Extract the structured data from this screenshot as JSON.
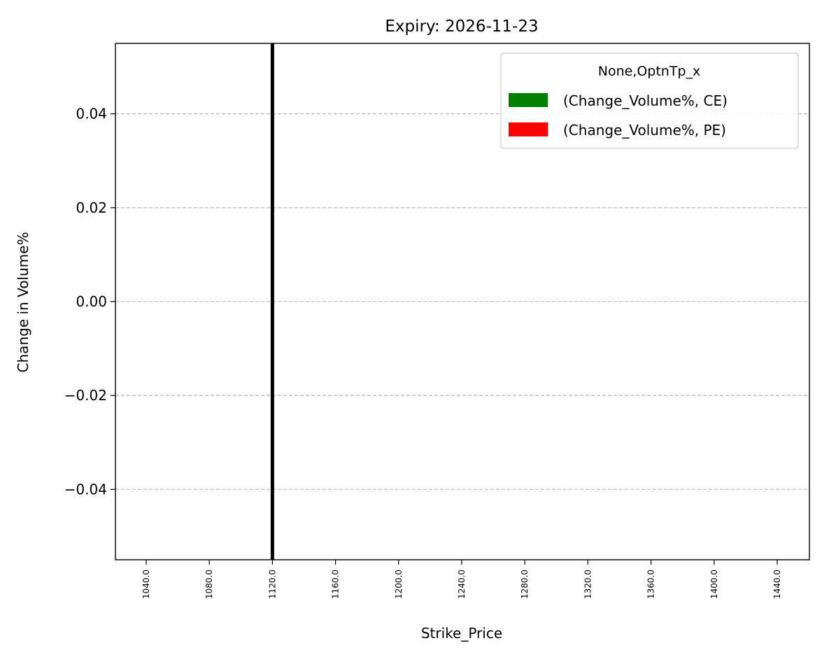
{
  "chart_data": {
    "type": "bar",
    "title": "Expiry: 2026-11-23",
    "xlabel": "Strike_Price",
    "ylabel": "Change in Volume%",
    "categories": [
      "1040.0",
      "1080.0",
      "1120.0",
      "1160.0",
      "1200.0",
      "1240.0",
      "1280.0",
      "1320.0",
      "1360.0",
      "1400.0",
      "1440.0"
    ],
    "series": [
      {
        "name": "(Change_Volume%, CE)",
        "color": "#008000",
        "values": [
          0,
          0,
          0,
          0,
          0,
          0,
          0,
          0,
          0,
          0,
          0
        ]
      },
      {
        "name": "(Change_Volume%, PE)",
        "color": "#ff0000",
        "values": [
          0,
          0,
          0,
          0,
          0,
          0,
          0,
          0,
          0,
          0,
          0
        ]
      }
    ],
    "legend_title": "None,OptnTp_x",
    "legend_position": "upper right",
    "ylim": [
      -0.055,
      0.055
    ],
    "yticks": [
      -0.04,
      -0.02,
      0.0,
      0.02,
      0.04
    ],
    "ytick_labels": [
      "−0.04",
      "−0.02",
      "0.00",
      "0.02",
      "0.04"
    ],
    "grid": "y dashed",
    "vline": {
      "x": "1120.0",
      "color": "#000000"
    }
  }
}
